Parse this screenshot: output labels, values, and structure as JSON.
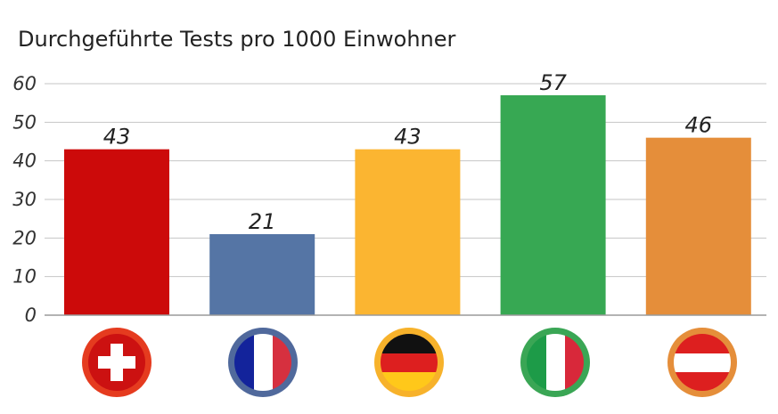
{
  "chart_data": {
    "type": "bar",
    "title": "Durchgeführte Tests pro 1000 Einwohner",
    "xlabel": "",
    "ylabel": "",
    "ylim": [
      0,
      60
    ],
    "yticks": [
      0,
      10,
      20,
      30,
      40,
      50,
      60
    ],
    "grid": true,
    "categories": [
      "Schweiz",
      "Frankreich",
      "Deutschland",
      "Italien",
      "Österreich"
    ],
    "category_icons": [
      "swiss-flag-icon",
      "french-flag-icon",
      "german-flag-icon",
      "italian-flag-icon",
      "austrian-flag-icon"
    ],
    "values": [
      43,
      21,
      43,
      57,
      46
    ],
    "value_labels": [
      "43",
      "21",
      "43",
      "57",
      "46"
    ],
    "colors": [
      "#cc0a0a",
      "#5575a5",
      "#fbb531",
      "#37a853",
      "#e58e3a"
    ]
  }
}
